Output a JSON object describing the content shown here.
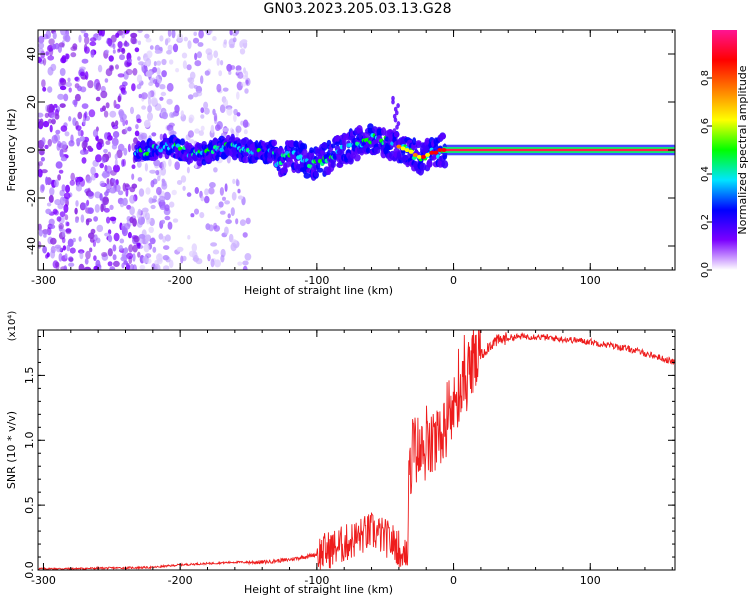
{
  "page": {
    "title": "GN03.2023.205.03.13.G28"
  },
  "chart_data": [
    {
      "type": "heatmap",
      "title": "GN03.2023.205.03.13.G28",
      "xlabel": "Height of straight line (km)",
      "ylabel": "Frequency (Hz)",
      "xlim": [
        -304,
        162
      ],
      "ylim": [
        -50,
        50
      ],
      "x_ticks": [
        -300,
        -200,
        -100,
        0,
        100
      ],
      "y_ticks": [
        -40,
        -20,
        0,
        20,
        40
      ],
      "colorbar": {
        "label": "Normalized spectral amplitude",
        "range": [
          0,
          1
        ],
        "ticks": [
          "0.0",
          "0.2",
          "0.4",
          "0.6",
          "0.8"
        ],
        "colors": [
          "#ffffff",
          "#7b00ff",
          "#0000ff",
          "#00e5ff",
          "#00ff00",
          "#ffff00",
          "#ff7f00",
          "#ff0000",
          "#ff1493"
        ]
      },
      "description_points": [
        {
          "x": -230,
          "f": 0,
          "a": 0.35
        },
        {
          "x": -200,
          "f": 1,
          "a": 0.45
        },
        {
          "x": -150,
          "f": 0,
          "a": 0.5
        },
        {
          "x": -100,
          "f": -4,
          "a": 0.45
        },
        {
          "x": -70,
          "f": 5,
          "a": 0.55
        },
        {
          "x": -45,
          "f": 4,
          "a": 0.7
        },
        {
          "x": -30,
          "f": 0,
          "a": 0.85
        },
        {
          "x": -15,
          "f": -2,
          "a": 0.9
        },
        {
          "x": 0,
          "f": 0,
          "a": 0.95
        },
        {
          "x": 50,
          "f": 0,
          "a": 1.0
        },
        {
          "x": 100,
          "f": 0,
          "a": 1.0
        },
        {
          "x": 160,
          "f": 0,
          "a": 1.0
        }
      ]
    },
    {
      "type": "line",
      "xlabel": "Height of straight line (km)",
      "ylabel": "SNR (10 * v/v)",
      "y_multiplier": "(x10⁴)",
      "xlim": [
        -304,
        162
      ],
      "ylim": [
        0,
        1.85
      ],
      "x_ticks": [
        -300,
        -200,
        -100,
        0,
        100
      ],
      "y_ticks": [
        "0.0",
        "0.5",
        "1.0",
        "1.5"
      ],
      "color": "#ee1c1c",
      "series": [
        {
          "x": [
            -304,
            -280,
            -250,
            -220,
            -200,
            -180,
            -160,
            -140,
            -120,
            -100,
            -90,
            -80,
            -70,
            -60,
            -50,
            -40,
            -35,
            -30,
            -25,
            -20,
            -15,
            -10,
            -5,
            0,
            5,
            10,
            15,
            20,
            25,
            30,
            40,
            50,
            60,
            70,
            80,
            90,
            100,
            110,
            120,
            130,
            140,
            150,
            162
          ],
          "y": [
            0.01,
            0.01,
            0.015,
            0.02,
            0.04,
            0.05,
            0.06,
            0.06,
            0.08,
            0.12,
            0.16,
            0.2,
            0.25,
            0.3,
            0.25,
            0.18,
            0.35,
            0.95,
            0.9,
            0.92,
            0.95,
            1.02,
            1.12,
            1.25,
            1.35,
            1.48,
            1.58,
            1.65,
            1.72,
            1.76,
            1.79,
            1.8,
            1.8,
            1.79,
            1.78,
            1.77,
            1.76,
            1.74,
            1.72,
            1.7,
            1.67,
            1.64,
            1.6
          ]
        }
      ]
    }
  ]
}
